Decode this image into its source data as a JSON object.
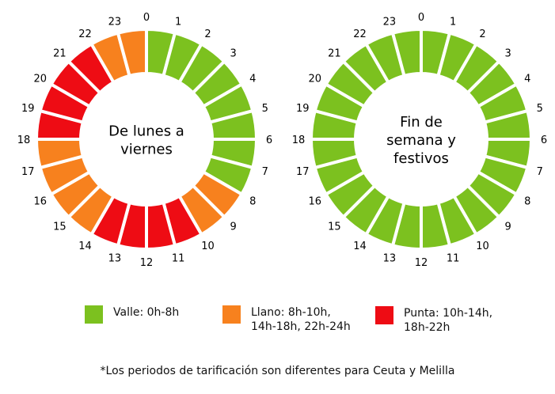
{
  "colors": {
    "valle": "#7cc11f",
    "llano": "#f7811e",
    "punta": "#ee0c14"
  },
  "charts": [
    {
      "title_lines": [
        "De lunes a",
        "viernes"
      ],
      "hours": [
        "valle",
        "valle",
        "valle",
        "valle",
        "valle",
        "valle",
        "valle",
        "valle",
        "llano",
        "llano",
        "punta",
        "punta",
        "punta",
        "punta",
        "llano",
        "llano",
        "llano",
        "llano",
        "punta",
        "punta",
        "punta",
        "punta",
        "llano",
        "llano"
      ]
    },
    {
      "title_lines": [
        "Fin de",
        "semana y",
        "festivos"
      ],
      "hours": [
        "valle",
        "valle",
        "valle",
        "valle",
        "valle",
        "valle",
        "valle",
        "valle",
        "valle",
        "valle",
        "valle",
        "valle",
        "valle",
        "valle",
        "valle",
        "valle",
        "valle",
        "valle",
        "valle",
        "valle",
        "valle",
        "valle",
        "valle",
        "valle"
      ]
    }
  ],
  "hour_labels": [
    "0",
    "1",
    "2",
    "3",
    "4",
    "5",
    "6",
    "7",
    "8",
    "9",
    "10",
    "11",
    "12",
    "13",
    "14",
    "15",
    "16",
    "17",
    "18",
    "19",
    "20",
    "21",
    "22",
    "23"
  ],
  "legend": [
    {
      "key": "valle",
      "lines": [
        "Valle: 0h-8h"
      ]
    },
    {
      "key": "llano",
      "lines": [
        "Llano: 8h-10h,",
        "14h-18h, 22h-24h"
      ]
    },
    {
      "key": "punta",
      "lines": [
        "Punta: 10h-14h,",
        "18h-22h"
      ]
    }
  ],
  "footnote": "*Los periodos de tarificación son diferentes para Ceuta y Melilla"
}
